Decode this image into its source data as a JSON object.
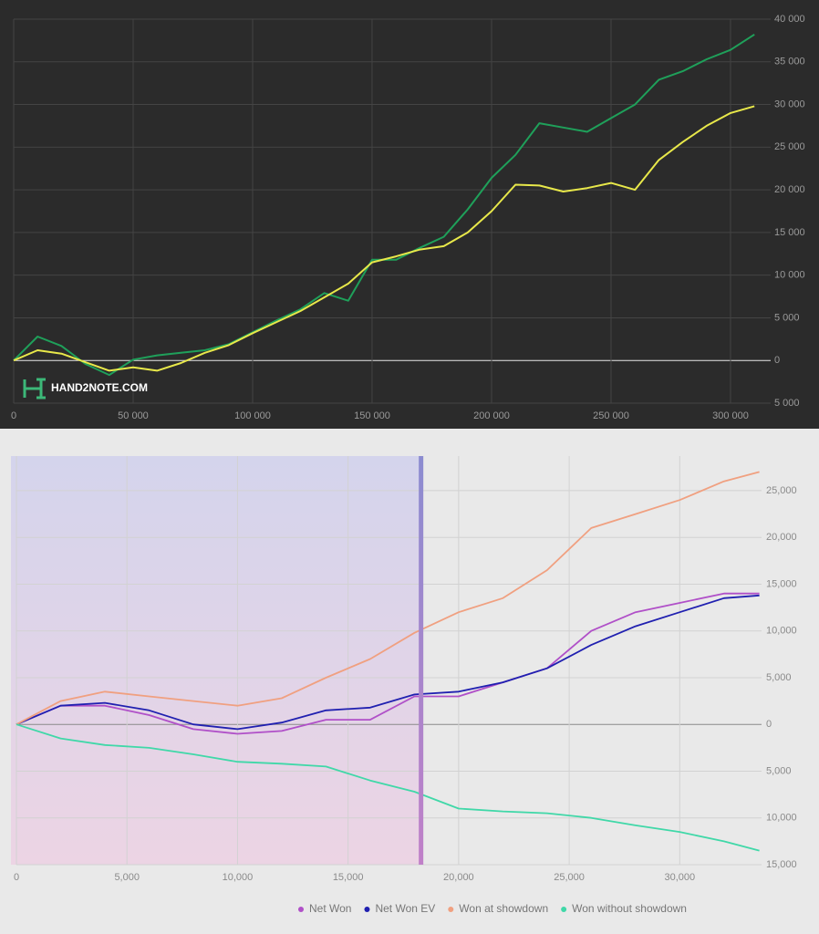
{
  "chart_data": [
    {
      "type": "line",
      "watermark": "HAND2NOTE.COM",
      "x": [
        0,
        10000,
        20000,
        30000,
        40000,
        50000,
        60000,
        70000,
        80000,
        90000,
        100000,
        110000,
        120000,
        130000,
        140000,
        150000,
        160000,
        170000,
        180000,
        190000,
        200000,
        210000,
        220000,
        230000,
        240000,
        250000,
        260000,
        270000,
        280000,
        290000,
        300000,
        310000
      ],
      "series": [
        {
          "color": "#1fa05a",
          "values": [
            0,
            2800,
            1700,
            -400,
            -1700,
            100,
            600,
            900,
            1200,
            1900,
            3300,
            4700,
            6000,
            7900,
            7000,
            11800,
            11800,
            13200,
            14500,
            17700,
            21400,
            24100,
            27800,
            27300,
            26800,
            28400,
            30000,
            32900,
            33900,
            35300,
            36400,
            38200
          ]
        },
        {
          "color": "#e8e84a",
          "values": [
            0,
            1200,
            800,
            -200,
            -1200,
            -800,
            -1200,
            -300,
            900,
            1800,
            3200,
            4500,
            5800,
            7400,
            9000,
            11500,
            12200,
            13000,
            13400,
            15000,
            17500,
            20600,
            20500,
            19800,
            20200,
            20800,
            20000,
            23500,
            25600,
            27500,
            29000,
            29800
          ]
        }
      ],
      "xlim": [
        0,
        316800
      ],
      "ylim": [
        -5000,
        40000
      ],
      "xticks": [
        0,
        {
          "value": 50000,
          "label": "50 000"
        },
        {
          "value": 100000,
          "label": "100 000"
        },
        {
          "value": 150000,
          "label": "150 000"
        },
        {
          "value": 200000,
          "label": "200 000"
        },
        {
          "value": 250000,
          "label": "250 000"
        },
        {
          "value": 300000,
          "label": "300 000"
        }
      ],
      "yticks": [
        {
          "value": -5000,
          "label": "5 000"
        },
        0,
        {
          "value": 5000,
          "label": "5 000"
        },
        {
          "value": 10000,
          "label": "10 000"
        },
        {
          "value": 15000,
          "label": "15 000"
        },
        {
          "value": 20000,
          "label": "20 000"
        },
        {
          "value": 25000,
          "label": "25 000"
        },
        {
          "value": 30000,
          "label": "30 000"
        },
        {
          "value": 35000,
          "label": "35 000"
        },
        {
          "value": 40000,
          "label": "40 000"
        }
      ],
      "grid": true
    },
    {
      "type": "line",
      "highlight_x": 18300,
      "x": [
        0,
        2000,
        4000,
        6000,
        8000,
        10000,
        12000,
        14000,
        16000,
        18000,
        20000,
        22000,
        24000,
        26000,
        28000,
        30000,
        32000,
        33600
      ],
      "series": [
        {
          "name": "Net Won",
          "color": "#b050c8",
          "values": [
            0,
            2000,
            2000,
            1000,
            -500,
            -1000,
            -700,
            500,
            500,
            3000,
            3000,
            4500,
            6000,
            10000,
            12000,
            13000,
            14000,
            14000
          ]
        },
        {
          "name": "Net Won EV",
          "color": "#2020b0",
          "values": [
            0,
            2000,
            2300,
            1500,
            0,
            -500,
            200,
            1500,
            1800,
            3200,
            3500,
            4500,
            6000,
            8500,
            10500,
            12000,
            13500,
            13800
          ]
        },
        {
          "name": "Won at showdown",
          "color": "#f0a080",
          "values": [
            0,
            2500,
            3500,
            3000,
            2500,
            2000,
            2800,
            5000,
            7000,
            9800,
            12000,
            13500,
            16500,
            21000,
            22500,
            24000,
            26000,
            27000
          ]
        },
        {
          "name": "Won without showdown",
          "color": "#40d8a8",
          "values": [
            0,
            -1500,
            -2200,
            -2500,
            -3200,
            -4000,
            -4200,
            -4500,
            -6000,
            -7200,
            -9000,
            -9300,
            -9500,
            -10000,
            -10800,
            -11500,
            -12500,
            -13500
          ]
        }
      ],
      "xlim": [
        0,
        33700
      ],
      "ylim": [
        -15000,
        28700
      ],
      "xticks": [
        0,
        {
          "value": 5000,
          "label": "5,000"
        },
        {
          "value": 10000,
          "label": "10,000"
        },
        {
          "value": 15000,
          "label": "15,000"
        },
        {
          "value": 20000,
          "label": "20,000"
        },
        {
          "value": 25000,
          "label": "25,000"
        },
        {
          "value": 30000,
          "label": "30,000"
        }
      ],
      "yticks": [
        {
          "value": -15000,
          "label": "15,000"
        },
        {
          "value": -10000,
          "label": "10,000"
        },
        {
          "value": -5000,
          "label": "5,000"
        },
        0,
        {
          "value": 5000,
          "label": "5,000"
        },
        {
          "value": 10000,
          "label": "10,000"
        },
        {
          "value": 15000,
          "label": "15,000"
        },
        {
          "value": 20000,
          "label": "20,000"
        },
        {
          "value": 25000,
          "label": "25,000"
        }
      ],
      "grid": true,
      "legend": "bottom"
    }
  ]
}
